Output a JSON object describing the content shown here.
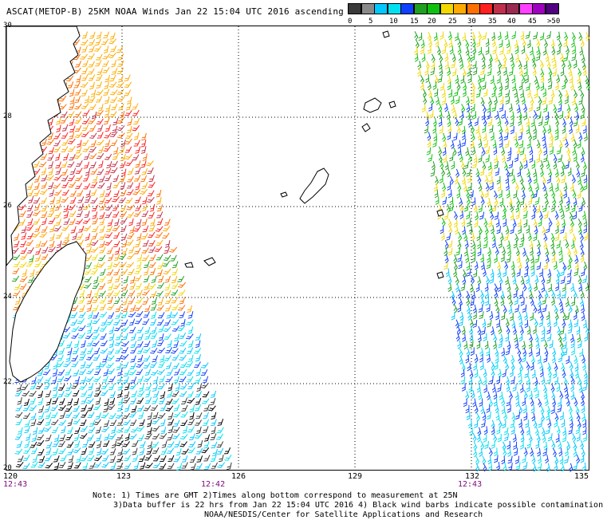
{
  "header": {
    "title": "ASCAT(METOP-B) 25KM NOAA Winds Jan 22 15:04 UTC 2016 ascending"
  },
  "legend": {
    "swatch_colors": [
      "#3a3a3a",
      "#8a8a8a",
      "#00c8ff",
      "#00e0f0",
      "#1040ff",
      "#20a020",
      "#10c010",
      "#f0d800",
      "#ffaa00",
      "#ff7000",
      "#ff2020",
      "#c0304a",
      "#9a2a50",
      "#ff40ff",
      "#a000c0",
      "#500080"
    ],
    "labels": [
      "0",
      "5",
      "10",
      "15",
      "20",
      "25",
      "30",
      "35",
      "40",
      "45",
      ">50 knots"
    ]
  },
  "axes": {
    "y_labels": [
      "30",
      "28",
      "26",
      "24",
      "22",
      "20"
    ],
    "x_labels": [
      "120",
      "123",
      "126",
      "129",
      "132",
      "135"
    ],
    "time_labels": [
      "12:43",
      "12:42",
      "12:43"
    ]
  },
  "notes": [
    "Note: 1) Times are GMT 2)Times along bottom correspond to measurement at 25N",
    "3)Data buffer is 22 hrs from Jan 22 15:04 UTC 2016 4) Black wind barbs indicate possible contamination",
    "NOAA/NESDIS/Center for Satellite Applications and Research"
  ]
}
